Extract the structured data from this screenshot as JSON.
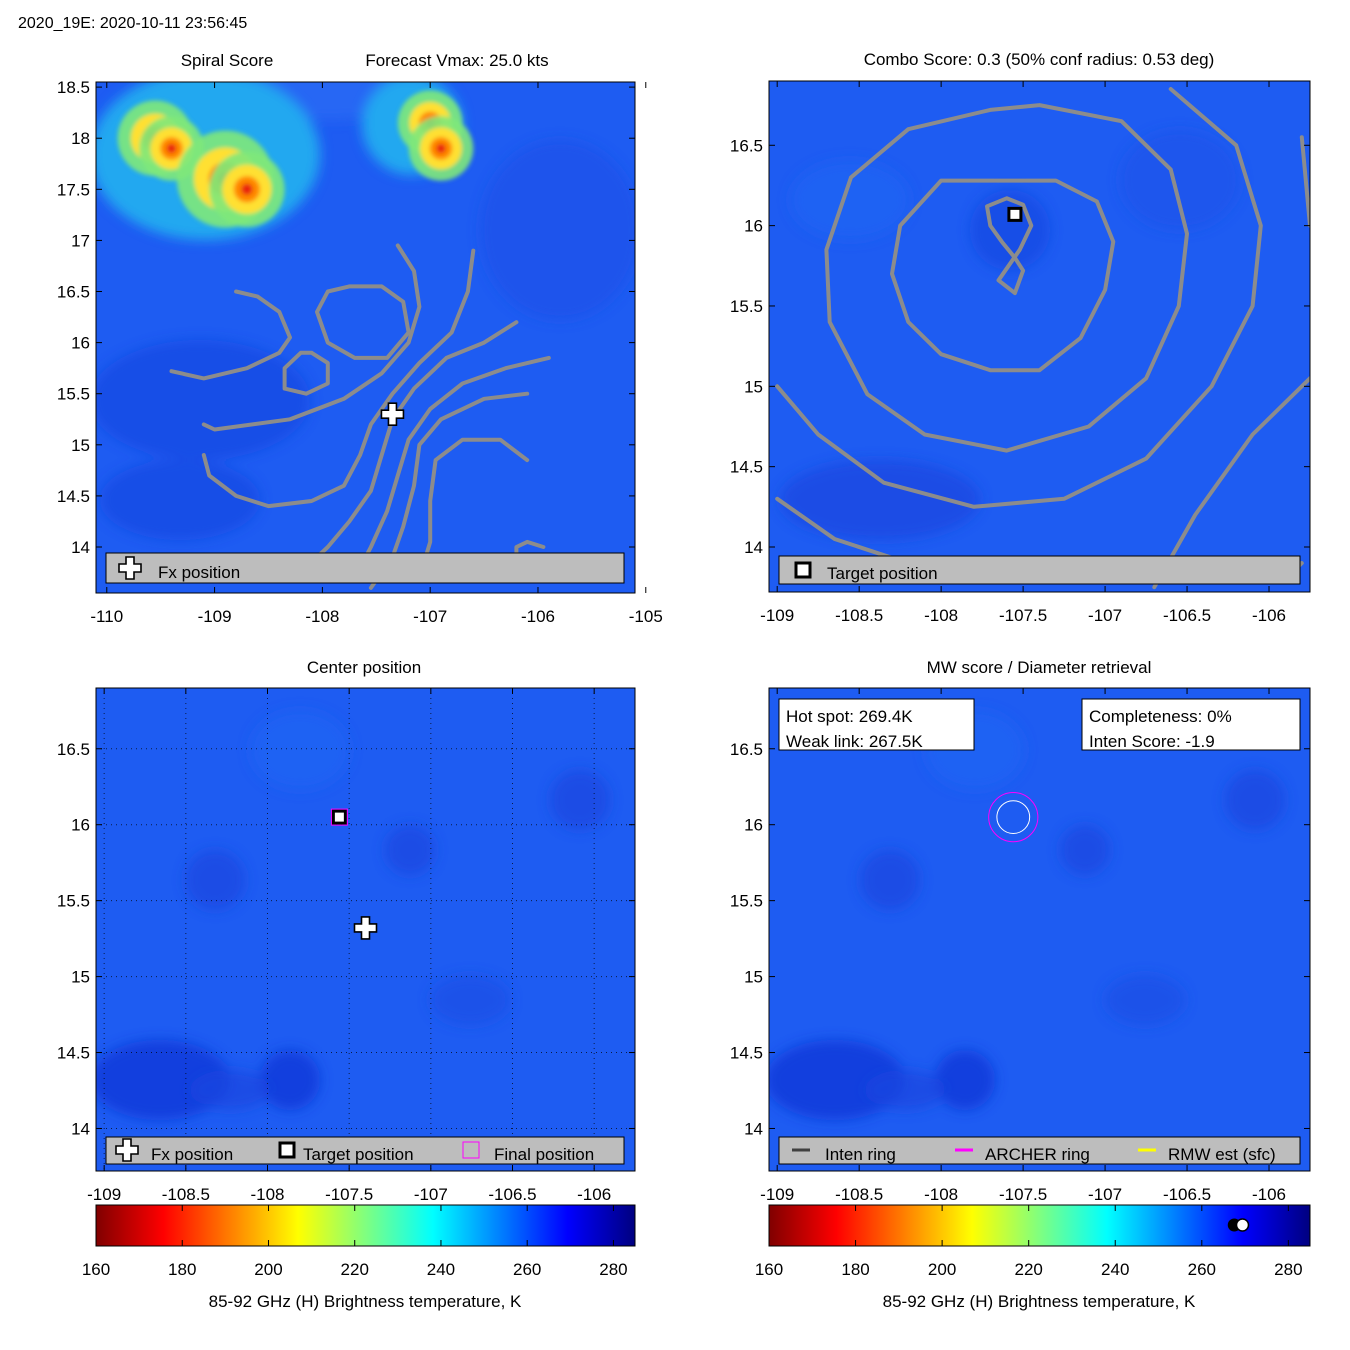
{
  "header": {
    "title": "2020_19E: 2020-10-11 23:56:45"
  },
  "colors": {
    "background_field": "#1e5cf2",
    "contour": "#8c8c8c",
    "legend_box": "#bdbdbd",
    "inten_ring": "#404040",
    "archer_ring": "#ff00ff",
    "rmw_est": "#ffff00"
  },
  "chart_data": [
    {
      "id": "spiral",
      "type": "heatmap",
      "title_left": "Spiral Score",
      "title_right": "Forecast Vmax: 25.0 kts",
      "xlim": [
        -110.1,
        -105.1
      ],
      "ylim": [
        13.55,
        18.55
      ],
      "xticks": [
        -110,
        -109,
        -108,
        -107,
        -106,
        -105
      ],
      "xtick_labels": [
        "-110",
        "-109",
        "-108",
        "-107",
        "-106",
        "-105"
      ],
      "yticks": [
        14,
        14.5,
        15,
        15.5,
        16,
        16.5,
        17,
        17.5,
        18,
        18.5
      ],
      "ytick_labels": [
        "14",
        "14.5",
        "15",
        "15.5",
        "16",
        "16.5",
        "17",
        "17.5",
        "18",
        "18.5"
      ],
      "hotspots": [
        {
          "lon": -109.55,
          "lat": 18.0,
          "r": 0.35
        },
        {
          "lon": -109.4,
          "lat": 17.9,
          "r": 0.3
        },
        {
          "lon": -108.9,
          "lat": 17.6,
          "r": 0.45
        },
        {
          "lon": -108.7,
          "lat": 17.5,
          "r": 0.35
        },
        {
          "lon": -107.0,
          "lat": 18.15,
          "r": 0.3
        },
        {
          "lon": -106.9,
          "lat": 17.9,
          "r": 0.3
        }
      ],
      "contours": [
        [
          [
            -108.8,
            16.5
          ],
          [
            -108.6,
            16.45
          ],
          [
            -108.4,
            16.3
          ],
          [
            -108.3,
            16.05
          ],
          [
            -108.4,
            15.9
          ],
          [
            -108.7,
            15.75
          ],
          [
            -109.1,
            15.65
          ],
          [
            -109.4,
            15.72
          ]
        ],
        [
          [
            -107.75,
            16.55
          ],
          [
            -107.45,
            16.55
          ],
          [
            -107.25,
            16.4
          ],
          [
            -107.2,
            16.1
          ],
          [
            -107.4,
            15.85
          ],
          [
            -107.7,
            15.85
          ],
          [
            -107.95,
            16.0
          ],
          [
            -108.05,
            16.3
          ],
          [
            -107.95,
            16.5
          ],
          [
            -107.75,
            16.55
          ]
        ],
        [
          [
            -108.1,
            15.9
          ],
          [
            -107.95,
            15.8
          ],
          [
            -107.95,
            15.6
          ],
          [
            -108.15,
            15.5
          ],
          [
            -108.35,
            15.55
          ],
          [
            -108.35,
            15.75
          ],
          [
            -108.2,
            15.9
          ],
          [
            -108.1,
            15.9
          ]
        ],
        [
          [
            -107.3,
            16.95
          ],
          [
            -107.15,
            16.7
          ],
          [
            -107.1,
            16.35
          ],
          [
            -107.2,
            16.0
          ],
          [
            -107.45,
            15.7
          ],
          [
            -107.8,
            15.45
          ],
          [
            -108.3,
            15.25
          ],
          [
            -109.0,
            15.15
          ],
          [
            -109.1,
            15.2
          ]
        ],
        [
          [
            -106.6,
            16.9
          ],
          [
            -106.65,
            16.5
          ],
          [
            -106.8,
            16.1
          ],
          [
            -107.1,
            15.8
          ],
          [
            -107.35,
            15.5
          ],
          [
            -107.55,
            15.2
          ],
          [
            -107.65,
            14.9
          ],
          [
            -107.8,
            14.6
          ],
          [
            -108.1,
            14.45
          ],
          [
            -108.5,
            14.4
          ],
          [
            -108.8,
            14.5
          ],
          [
            -109.05,
            14.7
          ],
          [
            -109.1,
            14.9
          ]
        ],
        [
          [
            -106.2,
            16.2
          ],
          [
            -106.5,
            16.0
          ],
          [
            -106.85,
            15.85
          ],
          [
            -107.15,
            15.55
          ],
          [
            -107.35,
            15.25
          ],
          [
            -107.45,
            14.9
          ],
          [
            -107.55,
            14.55
          ],
          [
            -107.75,
            14.25
          ],
          [
            -107.95,
            14.0
          ],
          [
            -108.1,
            13.85
          ]
        ],
        [
          [
            -105.9,
            15.85
          ],
          [
            -106.3,
            15.75
          ],
          [
            -106.7,
            15.6
          ],
          [
            -107.0,
            15.35
          ],
          [
            -107.2,
            15.05
          ],
          [
            -107.3,
            14.7
          ],
          [
            -107.4,
            14.35
          ],
          [
            -107.55,
            14.0
          ],
          [
            -107.65,
            13.8
          ]
        ],
        [
          [
            -106.1,
            15.5
          ],
          [
            -106.5,
            15.45
          ],
          [
            -106.9,
            15.25
          ],
          [
            -107.1,
            15.0
          ],
          [
            -107.15,
            14.6
          ],
          [
            -107.25,
            14.2
          ],
          [
            -107.35,
            13.9
          ],
          [
            -107.55,
            13.6
          ]
        ],
        [
          [
            -106.1,
            14.85
          ],
          [
            -106.35,
            15.05
          ],
          [
            -106.7,
            15.05
          ],
          [
            -106.95,
            14.85
          ],
          [
            -107.0,
            14.45
          ],
          [
            -107.0,
            14.05
          ],
          [
            -107.1,
            13.7
          ]
        ],
        [
          [
            -105.95,
            14.0
          ],
          [
            -106.1,
            14.05
          ],
          [
            -106.2,
            14.0
          ],
          [
            -106.2,
            13.8
          ]
        ]
      ],
      "markers": [
        {
          "kind": "fx",
          "lon": -107.35,
          "lat": 15.3
        }
      ],
      "legend": [
        {
          "marker": "fx",
          "label": "Fx position"
        }
      ]
    },
    {
      "id": "combo",
      "type": "heatmap",
      "title": "Combo Score: 0.3  (50% conf radius: 0.53 deg)",
      "xlim": [
        -109.05,
        -105.75
      ],
      "ylim": [
        13.72,
        16.9
      ],
      "xticks": [
        -109,
        -108.5,
        -108,
        -107.5,
        -107,
        -106.5,
        -106
      ],
      "xtick_labels": [
        "-109",
        "-108.5",
        "-108",
        "-107.5",
        "-107",
        "-106.5",
        "-106"
      ],
      "yticks": [
        14,
        14.5,
        15,
        15.5,
        16,
        16.5
      ],
      "ytick_labels": [
        "14",
        "14.5",
        "15",
        "15.5",
        "16",
        "16.5"
      ],
      "contours": [
        [
          [
            -107.55,
            15.58
          ],
          [
            -107.65,
            15.66
          ],
          [
            -107.52,
            15.85
          ],
          [
            -107.45,
            16.0
          ],
          [
            -107.5,
            16.13
          ],
          [
            -107.6,
            16.17
          ],
          [
            -107.72,
            16.12
          ],
          [
            -107.7,
            16.0
          ],
          [
            -107.63,
            15.9
          ],
          [
            -107.55,
            15.8
          ],
          [
            -107.5,
            15.72
          ],
          [
            -107.55,
            15.58
          ]
        ],
        [
          [
            -107.58,
            16.28
          ],
          [
            -107.3,
            16.28
          ],
          [
            -107.05,
            16.15
          ],
          [
            -106.95,
            15.9
          ],
          [
            -107.0,
            15.6
          ],
          [
            -107.15,
            15.3
          ],
          [
            -107.4,
            15.1
          ],
          [
            -107.7,
            15.1
          ],
          [
            -108.0,
            15.2
          ],
          [
            -108.2,
            15.4
          ],
          [
            -108.3,
            15.7
          ],
          [
            -108.25,
            16.0
          ],
          [
            -108.0,
            16.28
          ],
          [
            -107.58,
            16.28
          ]
        ],
        [
          [
            -107.4,
            16.75
          ],
          [
            -106.9,
            16.65
          ],
          [
            -106.6,
            16.35
          ],
          [
            -106.5,
            15.95
          ],
          [
            -106.55,
            15.5
          ],
          [
            -106.75,
            15.05
          ],
          [
            -107.1,
            14.75
          ],
          [
            -107.6,
            14.6
          ],
          [
            -108.1,
            14.7
          ],
          [
            -108.45,
            14.95
          ],
          [
            -108.68,
            15.4
          ],
          [
            -108.7,
            15.85
          ],
          [
            -108.55,
            16.3
          ],
          [
            -108.2,
            16.6
          ],
          [
            -107.7,
            16.72
          ],
          [
            -107.4,
            16.75
          ]
        ],
        [
          [
            -106.6,
            16.85
          ],
          [
            -106.2,
            16.5
          ],
          [
            -106.05,
            16.0
          ],
          [
            -106.1,
            15.5
          ],
          [
            -106.35,
            15.0
          ],
          [
            -106.75,
            14.55
          ],
          [
            -107.25,
            14.3
          ],
          [
            -107.8,
            14.25
          ],
          [
            -108.35,
            14.4
          ],
          [
            -108.75,
            14.7
          ],
          [
            -109.0,
            15.0
          ]
        ],
        [
          [
            -105.8,
            16.55
          ],
          [
            -105.75,
            16.0
          ]
        ],
        [
          [
            -109.0,
            14.3
          ],
          [
            -108.65,
            14.05
          ],
          [
            -108.2,
            13.9
          ],
          [
            -107.7,
            13.85
          ]
        ],
        [
          [
            -105.75,
            15.05
          ],
          [
            -106.1,
            14.7
          ],
          [
            -106.45,
            14.2
          ],
          [
            -106.7,
            13.75
          ]
        ],
        [
          [
            -105.85,
            13.85
          ],
          [
            -105.8,
            13.9
          ]
        ]
      ],
      "markers": [
        {
          "kind": "target",
          "lon": -107.55,
          "lat": 16.07
        }
      ],
      "legend": [
        {
          "marker": "target",
          "label": "Target position"
        }
      ]
    },
    {
      "id": "center",
      "type": "heatmap",
      "title": "Center position",
      "xlim": [
        -109.05,
        -105.75
      ],
      "ylim": [
        13.72,
        16.9
      ],
      "grid": true,
      "xticks": [
        -109,
        -108.5,
        -108,
        -107.5,
        -107,
        -106.5,
        -106
      ],
      "xtick_labels": [
        "-109",
        "-108.5",
        "-108",
        "-107.5",
        "-107",
        "-106.5",
        "-106"
      ],
      "yticks": [
        14,
        14.5,
        15,
        15.5,
        16,
        16.5
      ],
      "ytick_labels": [
        "14",
        "14.5",
        "15",
        "15.5",
        "16",
        "16.5"
      ],
      "markers": [
        {
          "kind": "target",
          "lon": -107.56,
          "lat": 16.05
        },
        {
          "kind": "final",
          "lon": -107.56,
          "lat": 16.05
        },
        {
          "kind": "fx",
          "lon": -107.4,
          "lat": 15.32
        }
      ],
      "legend": [
        {
          "marker": "fx",
          "label": "Fx position"
        },
        {
          "marker": "target",
          "label": "Target position"
        },
        {
          "marker": "final",
          "label": "Final position"
        }
      ]
    },
    {
      "id": "mw",
      "type": "heatmap",
      "title": "MW score / Diameter retrieval",
      "xlim": [
        -109.05,
        -105.75
      ],
      "ylim": [
        13.72,
        16.9
      ],
      "xticks": [
        -109,
        -108.5,
        -108,
        -107.5,
        -107,
        -106.5,
        -106
      ],
      "xtick_labels": [
        "-109",
        "-108.5",
        "-108",
        "-107.5",
        "-107",
        "-106.5",
        "-106"
      ],
      "yticks": [
        14,
        14.5,
        15,
        15.5,
        16,
        16.5
      ],
      "ytick_labels": [
        "14",
        "14.5",
        "15",
        "15.5",
        "16",
        "16.5"
      ],
      "info_left": [
        "Hot spot: 269.4K",
        "Weak link: 267.5K"
      ],
      "info_right": [
        "Completeness: 0%",
        "Inten Score: -1.9"
      ],
      "rings": [
        {
          "kind": "inten",
          "lon": -107.56,
          "lat": 16.05,
          "r_deg": 0.1
        },
        {
          "kind": "archer",
          "lon": -107.56,
          "lat": 16.05,
          "r_deg": 0.15
        }
      ],
      "legend": [
        {
          "marker": "inten",
          "label": "Inten ring"
        },
        {
          "marker": "archer",
          "label": "ARCHER ring"
        },
        {
          "marker": "rmw",
          "label": "RMW est (sfc)"
        }
      ]
    },
    {
      "id": "cbar1",
      "type": "colorbar",
      "range": [
        160,
        285
      ],
      "ticks": [
        160,
        180,
        200,
        220,
        240,
        260,
        280
      ],
      "tick_labels": [
        "160",
        "180",
        "200",
        "220",
        "240",
        "260",
        "280"
      ],
      "label": "85-92 GHz (H) Brightness temperature, K"
    },
    {
      "id": "cbar2",
      "type": "colorbar",
      "range": [
        160,
        285
      ],
      "ticks": [
        160,
        180,
        200,
        220,
        240,
        260,
        280
      ],
      "tick_labels": [
        "160",
        "180",
        "200",
        "220",
        "240",
        "260",
        "280"
      ],
      "label": "85-92 GHz (H) Brightness temperature, K",
      "indicators": [
        267.5,
        269.4
      ]
    }
  ]
}
